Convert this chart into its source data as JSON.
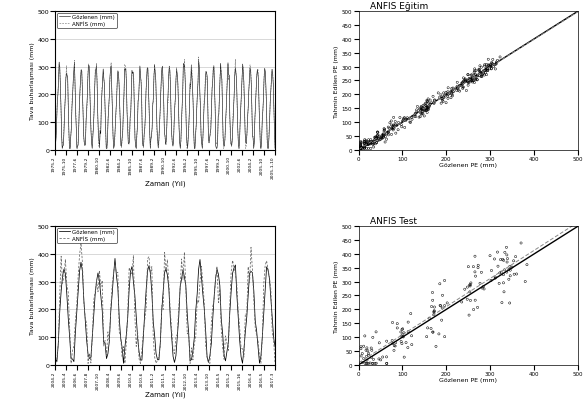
{
  "top_left": {
    "xlabel": "Zaman (Yıl)",
    "ylabel": "Tava buharlaşması (mm)",
    "ylim": [
      0,
      500
    ],
    "yticks": [
      0,
      100,
      200,
      300,
      400,
      500
    ],
    "legend": [
      "Gözlenen (mm)",
      "ANFİS (mm)"
    ],
    "xtick_labels": [
      "1975-2",
      "1975-10",
      "1977-6",
      "1979-2",
      "1980-10",
      "1982-6",
      "1984-2",
      "1985-10",
      "1987-6",
      "1989-2",
      "1990-10",
      "1992-6",
      "1994-2",
      "1995-10",
      "1997-6",
      "1999-2",
      "2000-10",
      "2002-6",
      "2004-2",
      "2005-10",
      "2005-1-10"
    ]
  },
  "top_right": {
    "title": "ANFIS Eğitim",
    "xlabel": "Gözlenen PE (mm)",
    "ylabel": "Tahmin Edilen PE (mm)",
    "xlim": [
      0,
      500
    ],
    "ylim": [
      0,
      500
    ],
    "xticks": [
      0,
      100,
      200,
      300,
      400,
      500
    ],
    "yticks": [
      0,
      50,
      100,
      150,
      200,
      250,
      300,
      350,
      400,
      450,
      500
    ]
  },
  "bottom_left": {
    "xlabel": "Zaman (Yıl)",
    "ylabel": "Tava buharlaşması (mm)",
    "ylim": [
      0,
      500
    ],
    "yticks": [
      0,
      100,
      200,
      300,
      400,
      500
    ],
    "legend": [
      "Gözlenen (mm)",
      "ANFİS (mm)"
    ],
    "xtick_labels": [
      "2004-2",
      "2005-4",
      "2006-6",
      "2007-8",
      "2007-10",
      "2008-4",
      "2009-6",
      "2010-4",
      "2010-6",
      "2011-2",
      "2011-5",
      "2012-4",
      "2012-10",
      "2013-4",
      "2013-10",
      "2014-5",
      "2015-2",
      "2015-16",
      "2016-4",
      "2016-5",
      "2017-3"
    ]
  },
  "bottom_right": {
    "title": "ANFIS Test",
    "xlabel": "Gözlenen PE (mm)",
    "ylabel": "Tahmin Edilen PE (mm)",
    "xlim": [
      0,
      500
    ],
    "ylim": [
      0,
      500
    ],
    "xticks": [
      0,
      100,
      200,
      300,
      400,
      500
    ],
    "yticks": [
      0,
      50,
      100,
      150,
      200,
      250,
      300,
      350,
      400,
      450,
      500
    ]
  },
  "colors": {
    "observed_line": "#000000",
    "anfis_line": "#666666",
    "scatter_dot": "#000000",
    "diagonal_line": "#000000",
    "regression_line": "#888888"
  }
}
